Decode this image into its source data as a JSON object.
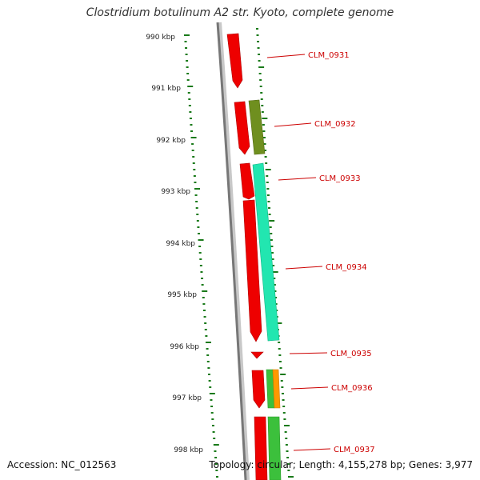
{
  "title": "Clostridium botulinum A2 str. Kyoto, complete genome",
  "accession": "Accession: NC_012563",
  "summary": "Topology: circular; Length: 4,155,278 bp; Genes: 3,977",
  "colors": {
    "backbone": "#8a8a8a",
    "tick": "#1a7a1a",
    "label": "#cc0000",
    "label_line": "#cc0000"
  },
  "scale_ticks": [
    "990 kbp",
    "991 kbp",
    "992 kbp",
    "993 kbp",
    "994 kbp",
    "995 kbp",
    "996 kbp",
    "997 kbp",
    "998 kbp"
  ],
  "genes": [
    {
      "label": "CLM_0931"
    },
    {
      "label": "CLM_0932"
    },
    {
      "label": "CLM_0933"
    },
    {
      "label": "CLM_0934"
    },
    {
      "label": "CLM_0935"
    },
    {
      "label": "CLM_0936"
    },
    {
      "label": "CLM_0937"
    }
  ]
}
